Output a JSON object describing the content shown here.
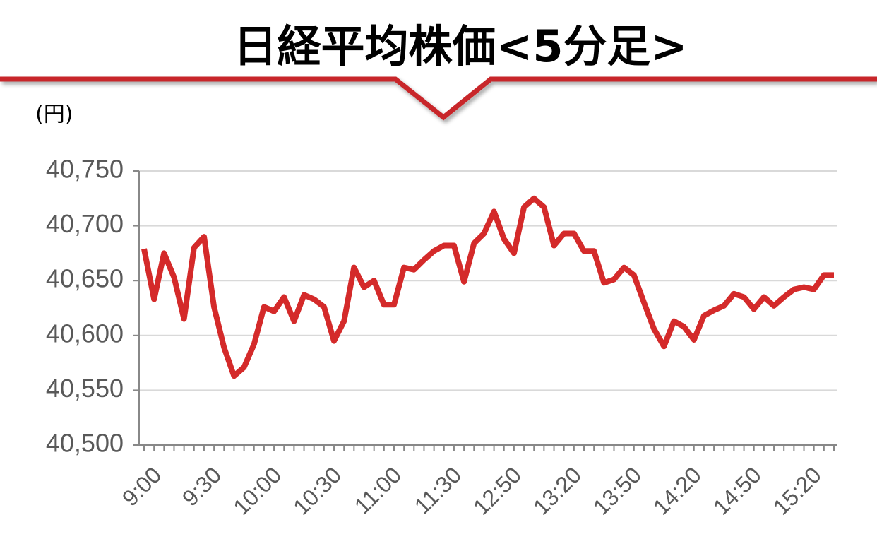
{
  "chart_data": {
    "type": "line",
    "title": "日経平均株価<5分足>",
    "y_label": "(円)",
    "categories": [
      "9:00",
      null,
      null,
      null,
      null,
      null,
      "9:30",
      null,
      null,
      null,
      null,
      null,
      "10:00",
      null,
      null,
      null,
      null,
      null,
      "10:30",
      null,
      null,
      null,
      null,
      null,
      "11:00",
      null,
      null,
      null,
      null,
      null,
      "11:30",
      null,
      null,
      null,
      null,
      null,
      "12:50",
      null,
      null,
      null,
      null,
      null,
      "13:20",
      null,
      null,
      null,
      null,
      null,
      "13:50",
      null,
      null,
      null,
      null,
      null,
      "14:20",
      null,
      null,
      null,
      null,
      null,
      "14:50",
      null,
      null,
      null,
      null,
      null,
      "15:20",
      null,
      null,
      null
    ],
    "series": [
      {
        "color": "#d42a2a",
        "values": [
          40679,
          40633,
          40675,
          40653,
          40615,
          40680,
          40690,
          40626,
          40589,
          40563,
          40571,
          40592,
          40626,
          40622,
          40635,
          40613,
          40637,
          40633,
          40626,
          40595,
          40613,
          40662,
          40644,
          40650,
          40628,
          40628,
          40662,
          40660,
          40669,
          40677,
          40682,
          40682,
          40649,
          40684,
          40693,
          40713,
          40688,
          40675,
          40717,
          40725,
          40717,
          40682,
          40693,
          40693,
          40677,
          40677,
          40648,
          40651,
          40662,
          40655,
          40630,
          40606,
          40590,
          40613,
          40608,
          40596,
          40618,
          40623,
          40627,
          40638,
          40635,
          40624,
          40635,
          40627,
          40635,
          40642,
          40644,
          40642,
          40655,
          40655
        ]
      }
    ],
    "ylim": [
      40500,
      40750
    ],
    "yticks": [
      {
        "value": 40500,
        "label": "40,500"
      },
      {
        "value": 40550,
        "label": "40,550"
      },
      {
        "value": 40600,
        "label": "40,600"
      },
      {
        "value": 40650,
        "label": "40,650"
      },
      {
        "value": 40700,
        "label": "40,700"
      },
      {
        "value": 40750,
        "label": "40,750"
      }
    ],
    "grid": true
  }
}
